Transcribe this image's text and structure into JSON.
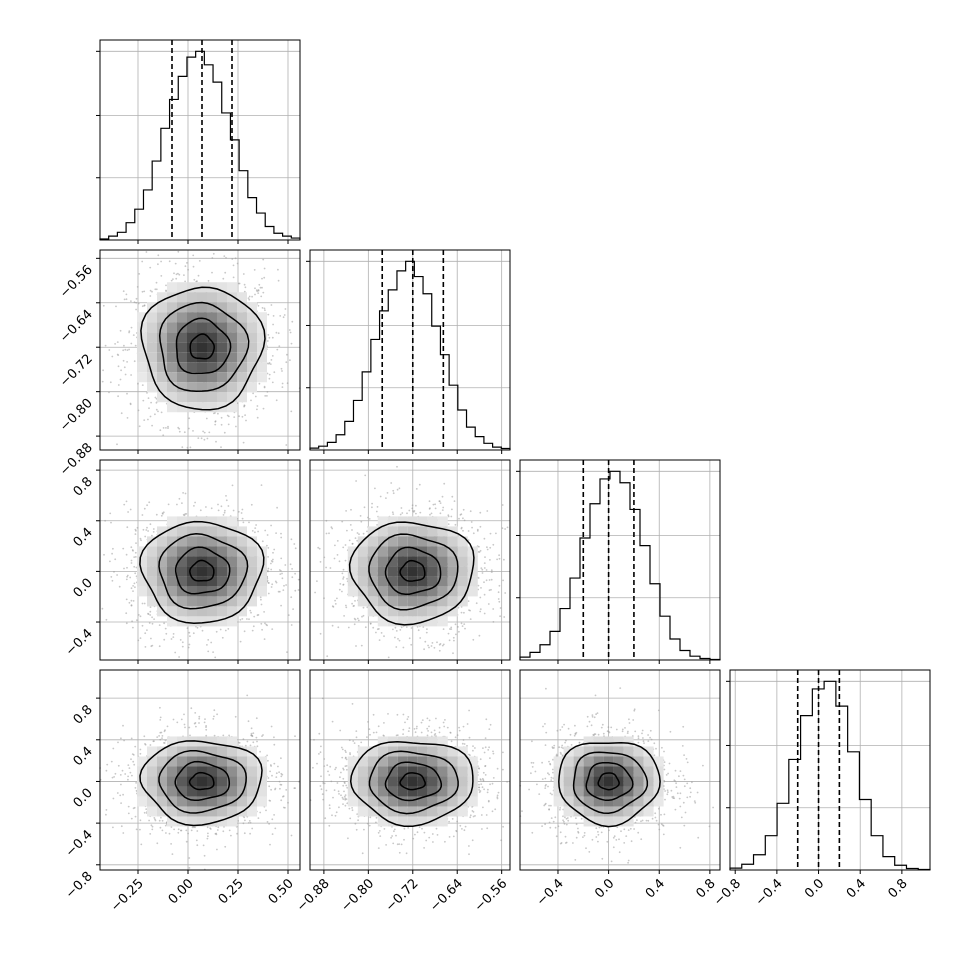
{
  "chart_data": {
    "type": "corner",
    "title": "",
    "variables": [
      {
        "median": 0.07,
        "q16": -0.08,
        "q84": 0.22,
        "range": [
          -0.44,
          0.56
        ],
        "axis_ticks": [
          -0.25,
          0.0,
          0.25,
          0.5
        ],
        "axis_tick_labels": [
          "−0.25",
          "0.00",
          "0.25",
          "0.50"
        ]
      },
      {
        "median": -0.72,
        "q16": -0.775,
        "q84": -0.665,
        "range": [
          -0.905,
          -0.545
        ],
        "axis_ticks": [
          -0.88,
          -0.8,
          -0.72,
          -0.64,
          -0.56
        ],
        "axis_tick_labels": [
          "−0.88",
          "−0.80",
          "−0.72",
          "−0.64",
          "−0.56"
        ]
      },
      {
        "median": 0.0,
        "q16": -0.2,
        "q84": 0.2,
        "range": [
          -0.7,
          0.88
        ],
        "axis_ticks": [
          -0.4,
          0.0,
          0.4,
          0.8
        ],
        "axis_tick_labels": [
          "−0.4",
          "0.0",
          "0.4",
          "0.8"
        ]
      },
      {
        "median": 0.0,
        "q16": -0.2,
        "q84": 0.2,
        "range": [
          -0.85,
          1.07
        ],
        "axis_ticks": [
          -0.8,
          -0.4,
          0.0,
          0.4,
          0.8
        ],
        "axis_tick_labels": [
          "−0.8",
          "−0.4",
          "0.0",
          "0.4",
          "0.8"
        ]
      }
    ],
    "histograms": [
      [
        0.005,
        0.02,
        0.04,
        0.09,
        0.16,
        0.26,
        0.41,
        0.58,
        0.73,
        0.85,
        0.95,
        0.98,
        0.91,
        0.82,
        0.66,
        0.52,
        0.36,
        0.22,
        0.14,
        0.07,
        0.035,
        0.02,
        0.01
      ],
      [
        0.01,
        0.02,
        0.04,
        0.08,
        0.15,
        0.26,
        0.41,
        0.58,
        0.73,
        0.84,
        0.94,
        0.99,
        0.91,
        0.82,
        0.65,
        0.5,
        0.34,
        0.21,
        0.12,
        0.07,
        0.035,
        0.015,
        0.008
      ],
      [
        0.015,
        0.04,
        0.08,
        0.15,
        0.27,
        0.43,
        0.64,
        0.82,
        0.95,
        0.99,
        0.93,
        0.79,
        0.6,
        0.4,
        0.23,
        0.11,
        0.05,
        0.02,
        0.008,
        0.003
      ],
      [
        0.01,
        0.03,
        0.08,
        0.18,
        0.35,
        0.58,
        0.81,
        0.95,
        0.99,
        0.86,
        0.62,
        0.37,
        0.18,
        0.07,
        0.025,
        0.008,
        0.003
      ]
    ],
    "grid": true,
    "quantile_lines": "dashed",
    "contour_levels": 4
  }
}
